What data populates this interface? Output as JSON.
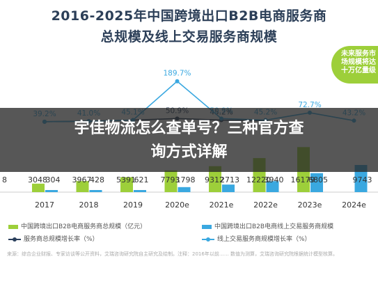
{
  "header": {
    "title": "2016-2025年中国跨境出口B2B电商服务商",
    "subtitle": "总规模及线上交易服务商规模"
  },
  "badge": {
    "lines": [
      "未来服务市",
      "场规模将达",
      "十万亿量级"
    ]
  },
  "overlay": {
    "lines": [
      "宇佳物流怎么查单号？三种官方查",
      "询方式详解"
    ]
  },
  "legend": {
    "total_scale": "中国跨境出口B2B电商服务商总规模（亿元）",
    "online_scale": "中国跨境出口B2B电商线上交易服务商规模",
    "total_growth": "服务商总规模增长率（%）",
    "online_growth": "线上交易服务商规模增长率（%）"
  },
  "footnote": "来源：综合企业财报、专家访谈等公开资料，艾瑞咨询研究院自主研究及绘制。注释：2016年以前…… 数值为测算，艾瑞咨询研究院根据统计模型核算。",
  "colors": {
    "total_bar": "#9dcf3a",
    "online_bar": "#3aa8e0",
    "total_growth_line": "#2a3f5c",
    "online_growth_line": "#3aa8e0",
    "title": "#2c3f58"
  },
  "chart_data": {
    "type": "bar",
    "categories": [
      "2017",
      "2018",
      "2019",
      "2020e",
      "2021e",
      "2022e",
      "2023e",
      "2024e"
    ],
    "series": [
      {
        "name": "中国跨境出口B2B电商服务商总规模（亿元）",
        "type": "bar",
        "values": [
          3048,
          3967,
          5391,
          7793,
          9312,
          12220,
          16179,
          null
        ],
        "labels": [
          "3048",
          "3967",
          "5391",
          "7793",
          "9312",
          "12220",
          "16179",
          ""
        ]
      },
      {
        "name": "中国跨境出口B2B电商线上交易服务商规模",
        "type": "bar",
        "values": [
          304,
          428,
          621,
          1798,
          2713,
          3940,
          6805,
          9743
        ],
        "labels": [
          "304",
          "428",
          "621",
          "1798",
          "2713",
          "3940",
          "6805",
          "9743"
        ]
      },
      {
        "name": "服务商总规模增长率（%）",
        "type": "line",
        "values": [
          39.2,
          41.0,
          45.1,
          50.9,
          45.2,
          43.2,
          null,
          null
        ],
        "labels": [
          "",
          "",
          "",
          "50.9%",
          "45.2%",
          "",
          "",
          ""
        ]
      },
      {
        "name": "线上交易服务商规模增长率（%）",
        "type": "line",
        "values": [
          39.2,
          41.0,
          45.1,
          189.7,
          50.9,
          45.2,
          72.7,
          43.2
        ],
        "labels": [
          "39.2%",
          "41.0%",
          "45.1%",
          "189.7%",
          "50.9%",
          "45.2%",
          "72.7%",
          "43.2%"
        ]
      }
    ],
    "left_edge_label": "8",
    "ylim_bars": [
      0,
      30000
    ],
    "ylim_lines": [
      0,
      220
    ],
    "grid": false,
    "legend_position": "bottom"
  }
}
